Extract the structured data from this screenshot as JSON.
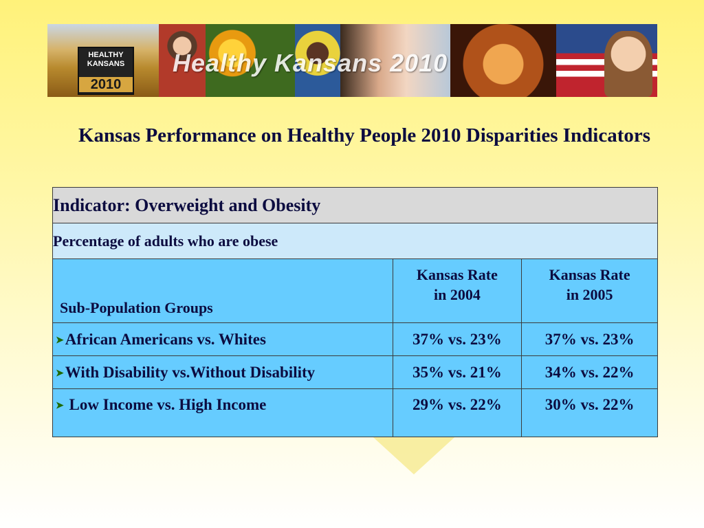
{
  "banner": {
    "logo_line1": "HEALTHY",
    "logo_line2": "KANSANS",
    "logo_year": "2010",
    "title": "Healthy Kansans 2010"
  },
  "slide": {
    "title": "Kansas Performance on Healthy People 2010 Disparities Indicators"
  },
  "table": {
    "indicator": "Indicator: Overweight and Obesity",
    "measure": "Percentage of adults who are obese",
    "columns": {
      "groups": "Sub-Population Groups",
      "year1_line1": "Kansas Rate",
      "year1_line2": "in 2004",
      "year2_line1": "Kansas Rate",
      "year2_line2": "in 2005"
    },
    "rows": [
      {
        "group": "African Americans vs. Whites",
        "rate_2004": "37% vs. 23%",
        "rate_2005": "37% vs. 23%"
      },
      {
        "group": "With Disability vs.Without Disability",
        "rate_2004": "35% vs. 21%",
        "rate_2005": "34% vs. 22%"
      },
      {
        "group": " Low Income vs. High Income",
        "rate_2004": "29% vs. 22%",
        "rate_2005": "30% vs. 22%"
      }
    ],
    "bullet_icon": "arrow-bullet-icon"
  },
  "colors": {
    "header_gray": "#d9d9d9",
    "measure_light_blue": "#cde9fa",
    "cell_blue": "#66ccff",
    "bullet_green": "#1e6b00",
    "text_navy": "#0c0c40"
  }
}
